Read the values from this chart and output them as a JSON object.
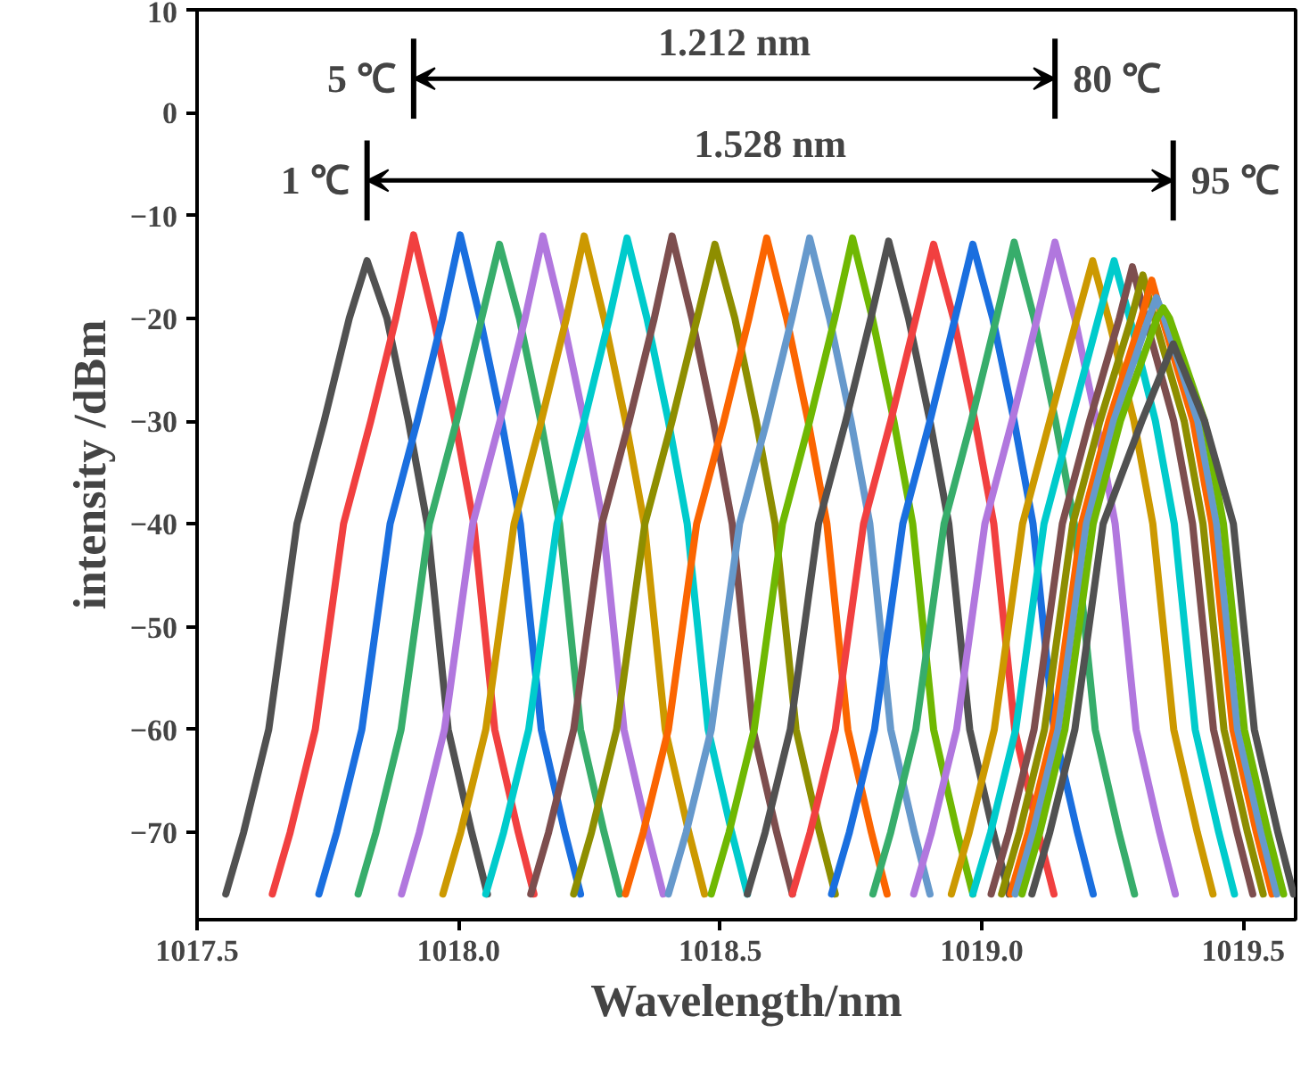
{
  "chart_data": {
    "type": "line",
    "xlabel": "Wavelength/nm",
    "ylabel": "intensity /dBm",
    "xlim": [
      1017.5,
      1019.6
    ],
    "xticks": [
      {
        "value": 1017.5,
        "label": "1017.5"
      },
      {
        "value": 1018.0,
        "label": "1018.0"
      },
      {
        "value": 1018.5,
        "label": "1018.5"
      },
      {
        "value": 1019.0,
        "label": "1019.0"
      },
      {
        "value": 1019.5,
        "label": "1019.5"
      }
    ],
    "ylim": [
      -78.5,
      10
    ],
    "yticks": [
      -70,
      -60,
      -50,
      -40,
      -30,
      -20,
      -10,
      0,
      10
    ],
    "grid": false,
    "marker": "none",
    "line_style": "solid",
    "annotations": [
      "5 ℃",
      "1.212 nm",
      "80 ℃",
      "1 ℃",
      "1.528 nm",
      "95 ℃"
    ],
    "series": [
      {
        "color": "#515151",
        "x": [
          1017.555,
          1017.589,
          1017.637,
          1017.664,
          1017.691,
          1017.743,
          1017.791,
          1017.825,
          1017.863,
          1017.904,
          1017.94,
          1017.96,
          1017.98,
          1018.025,
          1018.055
        ],
        "values": [
          -76,
          -70,
          -60,
          -50,
          -40,
          -30,
          -20,
          -14.4,
          -20,
          -30,
          -40,
          -50,
          -60,
          -70,
          -76
        ]
      },
      {
        "color": "#f14040",
        "x": [
          1017.644,
          1017.678,
          1017.726,
          1017.753,
          1017.78,
          1017.832,
          1017.88,
          1017.914,
          1017.952,
          1017.993,
          1018.029,
          1018.049,
          1018.069,
          1018.114,
          1018.144
        ],
        "values": [
          -76,
          -70,
          -60,
          -50,
          -40,
          -30,
          -20,
          -11.9,
          -20,
          -30,
          -40,
          -50,
          -60,
          -70,
          -76
        ]
      },
      {
        "color": "#1a6fdf",
        "x": [
          1017.733,
          1017.767,
          1017.815,
          1017.842,
          1017.869,
          1017.921,
          1017.969,
          1018.003,
          1018.041,
          1018.082,
          1018.118,
          1018.138,
          1018.158,
          1018.203,
          1018.233
        ],
        "values": [
          -76,
          -70,
          -60,
          -50,
          -40,
          -30,
          -20,
          -11.9,
          -20,
          -30,
          -40,
          -50,
          -60,
          -70,
          -76
        ]
      },
      {
        "color": "#37ad6b",
        "x": [
          1017.808,
          1017.842,
          1017.89,
          1017.917,
          1017.944,
          1017.996,
          1018.044,
          1018.078,
          1018.116,
          1018.157,
          1018.193,
          1018.213,
          1018.233,
          1018.278,
          1018.308
        ],
        "values": [
          -76,
          -70,
          -60,
          -50,
          -40,
          -30,
          -20,
          -12.8,
          -20,
          -30,
          -40,
          -50,
          -60,
          -70,
          -76
        ]
      },
      {
        "color": "#b177de",
        "x": [
          1017.891,
          1017.925,
          1017.973,
          1018.0,
          1018.027,
          1018.079,
          1018.127,
          1018.161,
          1018.199,
          1018.24,
          1018.276,
          1018.296,
          1018.316,
          1018.361,
          1018.391
        ],
        "values": [
          -76,
          -70,
          -60,
          -50,
          -40,
          -30,
          -20,
          -12.0,
          -20,
          -30,
          -40,
          -50,
          -60,
          -70,
          -76
        ]
      },
      {
        "color": "#cc9900",
        "x": [
          1017.97,
          1018.004,
          1018.052,
          1018.079,
          1018.106,
          1018.158,
          1018.206,
          1018.24,
          1018.278,
          1018.319,
          1018.355,
          1018.375,
          1018.395,
          1018.44,
          1018.47
        ],
        "values": [
          -76,
          -70,
          -60,
          -50,
          -40,
          -30,
          -20,
          -12.0,
          -20,
          -30,
          -40,
          -50,
          -60,
          -70,
          -76
        ]
      },
      {
        "color": "#00cbcc",
        "x": [
          1018.052,
          1018.086,
          1018.134,
          1018.161,
          1018.188,
          1018.24,
          1018.288,
          1018.322,
          1018.36,
          1018.401,
          1018.437,
          1018.457,
          1018.477,
          1018.522,
          1018.552
        ],
        "values": [
          -76,
          -70,
          -60,
          -50,
          -40,
          -30,
          -20,
          -12.2,
          -20,
          -30,
          -40,
          -50,
          -60,
          -70,
          -76
        ]
      },
      {
        "color": "#7d4e4e",
        "x": [
          1018.138,
          1018.172,
          1018.22,
          1018.247,
          1018.274,
          1018.326,
          1018.374,
          1018.408,
          1018.446,
          1018.487,
          1018.523,
          1018.543,
          1018.563,
          1018.608,
          1018.638
        ],
        "values": [
          -76,
          -70,
          -60,
          -50,
          -40,
          -30,
          -20,
          -12.0,
          -20,
          -30,
          -40,
          -50,
          -60,
          -70,
          -76
        ]
      },
      {
        "color": "#8e8e00",
        "x": [
          1018.22,
          1018.254,
          1018.302,
          1018.329,
          1018.356,
          1018.408,
          1018.456,
          1018.49,
          1018.528,
          1018.569,
          1018.605,
          1018.625,
          1018.645,
          1018.69,
          1018.72
        ],
        "values": [
          -76,
          -70,
          -60,
          -50,
          -40,
          -30,
          -20,
          -12.8,
          -20,
          -30,
          -40,
          -50,
          -60,
          -70,
          -76
        ]
      },
      {
        "color": "#fb6501",
        "x": [
          1018.319,
          1018.353,
          1018.401,
          1018.428,
          1018.455,
          1018.507,
          1018.555,
          1018.589,
          1018.627,
          1018.668,
          1018.704,
          1018.724,
          1018.744,
          1018.789,
          1018.819
        ],
        "values": [
          -76,
          -70,
          -60,
          -50,
          -40,
          -30,
          -20,
          -12.2,
          -20,
          -30,
          -40,
          -50,
          -60,
          -70,
          -76
        ]
      },
      {
        "color": "#6699cc",
        "x": [
          1018.401,
          1018.435,
          1018.483,
          1018.51,
          1018.537,
          1018.589,
          1018.637,
          1018.671,
          1018.709,
          1018.75,
          1018.786,
          1018.806,
          1018.826,
          1018.871,
          1018.901
        ],
        "values": [
          -76,
          -70,
          -60,
          -50,
          -40,
          -30,
          -20,
          -12.2,
          -20,
          -30,
          -40,
          -50,
          -60,
          -70,
          -76
        ]
      },
      {
        "color": "#6fb802",
        "x": [
          1018.483,
          1018.517,
          1018.565,
          1018.592,
          1018.619,
          1018.671,
          1018.719,
          1018.753,
          1018.791,
          1018.832,
          1018.868,
          1018.888,
          1018.908,
          1018.953,
          1018.983
        ],
        "values": [
          -76,
          -70,
          -60,
          -50,
          -40,
          -30,
          -20,
          -12.2,
          -20,
          -30,
          -40,
          -50,
          -60,
          -70,
          -76
        ]
      },
      {
        "color": "#515151",
        "x": [
          1018.552,
          1018.586,
          1018.634,
          1018.661,
          1018.688,
          1018.74,
          1018.788,
          1018.822,
          1018.86,
          1018.901,
          1018.937,
          1018.957,
          1018.977,
          1019.022,
          1019.052
        ],
        "values": [
          -76,
          -70,
          -60,
          -50,
          -40,
          -30,
          -20,
          -12.5,
          -20,
          -30,
          -40,
          -50,
          -60,
          -70,
          -76
        ]
      },
      {
        "color": "#f14040",
        "x": [
          1018.638,
          1018.672,
          1018.72,
          1018.747,
          1018.774,
          1018.826,
          1018.874,
          1018.908,
          1018.946,
          1018.987,
          1019.023,
          1019.043,
          1019.063,
          1019.108,
          1019.138
        ],
        "values": [
          -76,
          -70,
          -60,
          -50,
          -40,
          -30,
          -20,
          -12.8,
          -20,
          -30,
          -40,
          -50,
          -60,
          -70,
          -76
        ]
      },
      {
        "color": "#1a6fdf",
        "x": [
          1018.713,
          1018.747,
          1018.795,
          1018.822,
          1018.849,
          1018.901,
          1018.949,
          1018.983,
          1019.021,
          1019.062,
          1019.098,
          1019.118,
          1019.138,
          1019.183,
          1019.213
        ],
        "values": [
          -76,
          -70,
          -60,
          -50,
          -40,
          -30,
          -20,
          -12.8,
          -20,
          -30,
          -40,
          -50,
          -60,
          -70,
          -76
        ]
      },
      {
        "color": "#37ad6b",
        "x": [
          1018.792,
          1018.826,
          1018.874,
          1018.901,
          1018.928,
          1018.98,
          1019.028,
          1019.062,
          1019.1,
          1019.141,
          1019.177,
          1019.197,
          1019.217,
          1019.262,
          1019.292
        ],
        "values": [
          -76,
          -70,
          -60,
          -50,
          -40,
          -30,
          -20,
          -12.6,
          -20,
          -30,
          -40,
          -50,
          -60,
          -70,
          -76
        ]
      },
      {
        "color": "#b177de",
        "x": [
          1018.87,
          1018.904,
          1018.952,
          1018.979,
          1019.006,
          1019.058,
          1019.106,
          1019.14,
          1019.178,
          1019.219,
          1019.255,
          1019.275,
          1019.295,
          1019.34,
          1019.37
        ],
        "values": [
          -76,
          -70,
          -60,
          -50,
          -40,
          -30,
          -20,
          -12.6,
          -20,
          -30,
          -40,
          -50,
          -60,
          -70,
          -76
        ]
      },
      {
        "color": "#cc9900",
        "x": [
          1018.942,
          1018.976,
          1019.024,
          1019.051,
          1019.078,
          1019.13,
          1019.182,
          1019.212,
          1019.242,
          1019.291,
          1019.327,
          1019.347,
          1019.367,
          1019.412,
          1019.442
        ],
        "values": [
          -76,
          -70,
          -60,
          -50,
          -40,
          -30,
          -20,
          -14.4,
          -20,
          -30,
          -40,
          -50,
          -60,
          -70,
          -76
        ]
      },
      {
        "color": "#00cbcc",
        "x": [
          1018.983,
          1019.017,
          1019.065,
          1019.092,
          1019.119,
          1019.171,
          1019.223,
          1019.253,
          1019.283,
          1019.332,
          1019.368,
          1019.388,
          1019.408,
          1019.453,
          1019.483
        ],
        "values": [
          -76,
          -70,
          -60,
          -50,
          -40,
          -30,
          -20,
          -14.4,
          -20,
          -30,
          -40,
          -50,
          -60,
          -70,
          -76
        ]
      },
      {
        "color": "#7d4e4e",
        "x": [
          1019.018,
          1019.052,
          1019.1,
          1019.127,
          1019.154,
          1019.206,
          1019.263,
          1019.288,
          1019.313,
          1019.367,
          1019.403,
          1019.423,
          1019.443,
          1019.488,
          1019.518
        ],
        "values": [
          -76,
          -70,
          -60,
          -50,
          -40,
          -30,
          -20,
          -15.0,
          -20,
          -30,
          -40,
          -50,
          -60,
          -70,
          -76
        ]
      },
      {
        "color": "#8e8e00",
        "x": [
          1019.038,
          1019.072,
          1019.12,
          1019.147,
          1019.174,
          1019.226,
          1019.286,
          1019.308,
          1019.33,
          1019.387,
          1019.423,
          1019.443,
          1019.463,
          1019.508,
          1019.538
        ],
        "values": [
          -76,
          -70,
          -60,
          -50,
          -40,
          -30,
          -20,
          -15.8,
          -20,
          -30,
          -40,
          -50,
          -60,
          -70,
          -76
        ]
      },
      {
        "color": "#fb6501",
        "x": [
          1019.055,
          1019.089,
          1019.137,
          1019.164,
          1019.191,
          1019.243,
          1019.305,
          1019.325,
          1019.345,
          1019.404,
          1019.44,
          1019.46,
          1019.48,
          1019.525,
          1019.555
        ],
        "values": [
          -76,
          -70,
          -60,
          -50,
          -40,
          -30,
          -20,
          -16.3,
          -20,
          -30,
          -40,
          -50,
          -60,
          -70,
          -76
        ]
      },
      {
        "color": "#6699cc",
        "x": [
          1019.064,
          1019.098,
          1019.146,
          1019.173,
          1019.2,
          1019.252,
          1019.319,
          1019.334,
          1019.349,
          1019.413,
          1019.449,
          1019.469,
          1019.489,
          1019.534,
          1019.564
        ],
        "values": [
          -76,
          -70,
          -60,
          -50,
          -40,
          -30,
          -20,
          -18.0,
          -20,
          -30,
          -40,
          -50,
          -60,
          -70,
          -76
        ]
      },
      {
        "color": "#6fb802",
        "x": [
          1019.077,
          1019.111,
          1019.159,
          1019.186,
          1019.213,
          1019.265,
          1019.335,
          1019.347,
          1019.359,
          1019.426,
          1019.462,
          1019.482,
          1019.502,
          1019.547,
          1019.577
        ],
        "values": [
          -76,
          -70,
          -60,
          -50,
          -40,
          -30,
          -20,
          -19.0,
          -20,
          -30,
          -40,
          -50,
          -60,
          -70,
          -76
        ]
      },
      {
        "color": "#515151",
        "x": [
          1019.096,
          1019.13,
          1019.178,
          1019.205,
          1019.232,
          1019.306,
          1019.366,
          1019.426,
          1019.481,
          1019.501,
          1019.521,
          1019.566,
          1019.596
        ],
        "values": [
          -76,
          -70,
          -60,
          -50,
          -40,
          -30,
          -22.5,
          -30,
          -40,
          -50,
          -60,
          -70,
          -76
        ]
      }
    ]
  }
}
